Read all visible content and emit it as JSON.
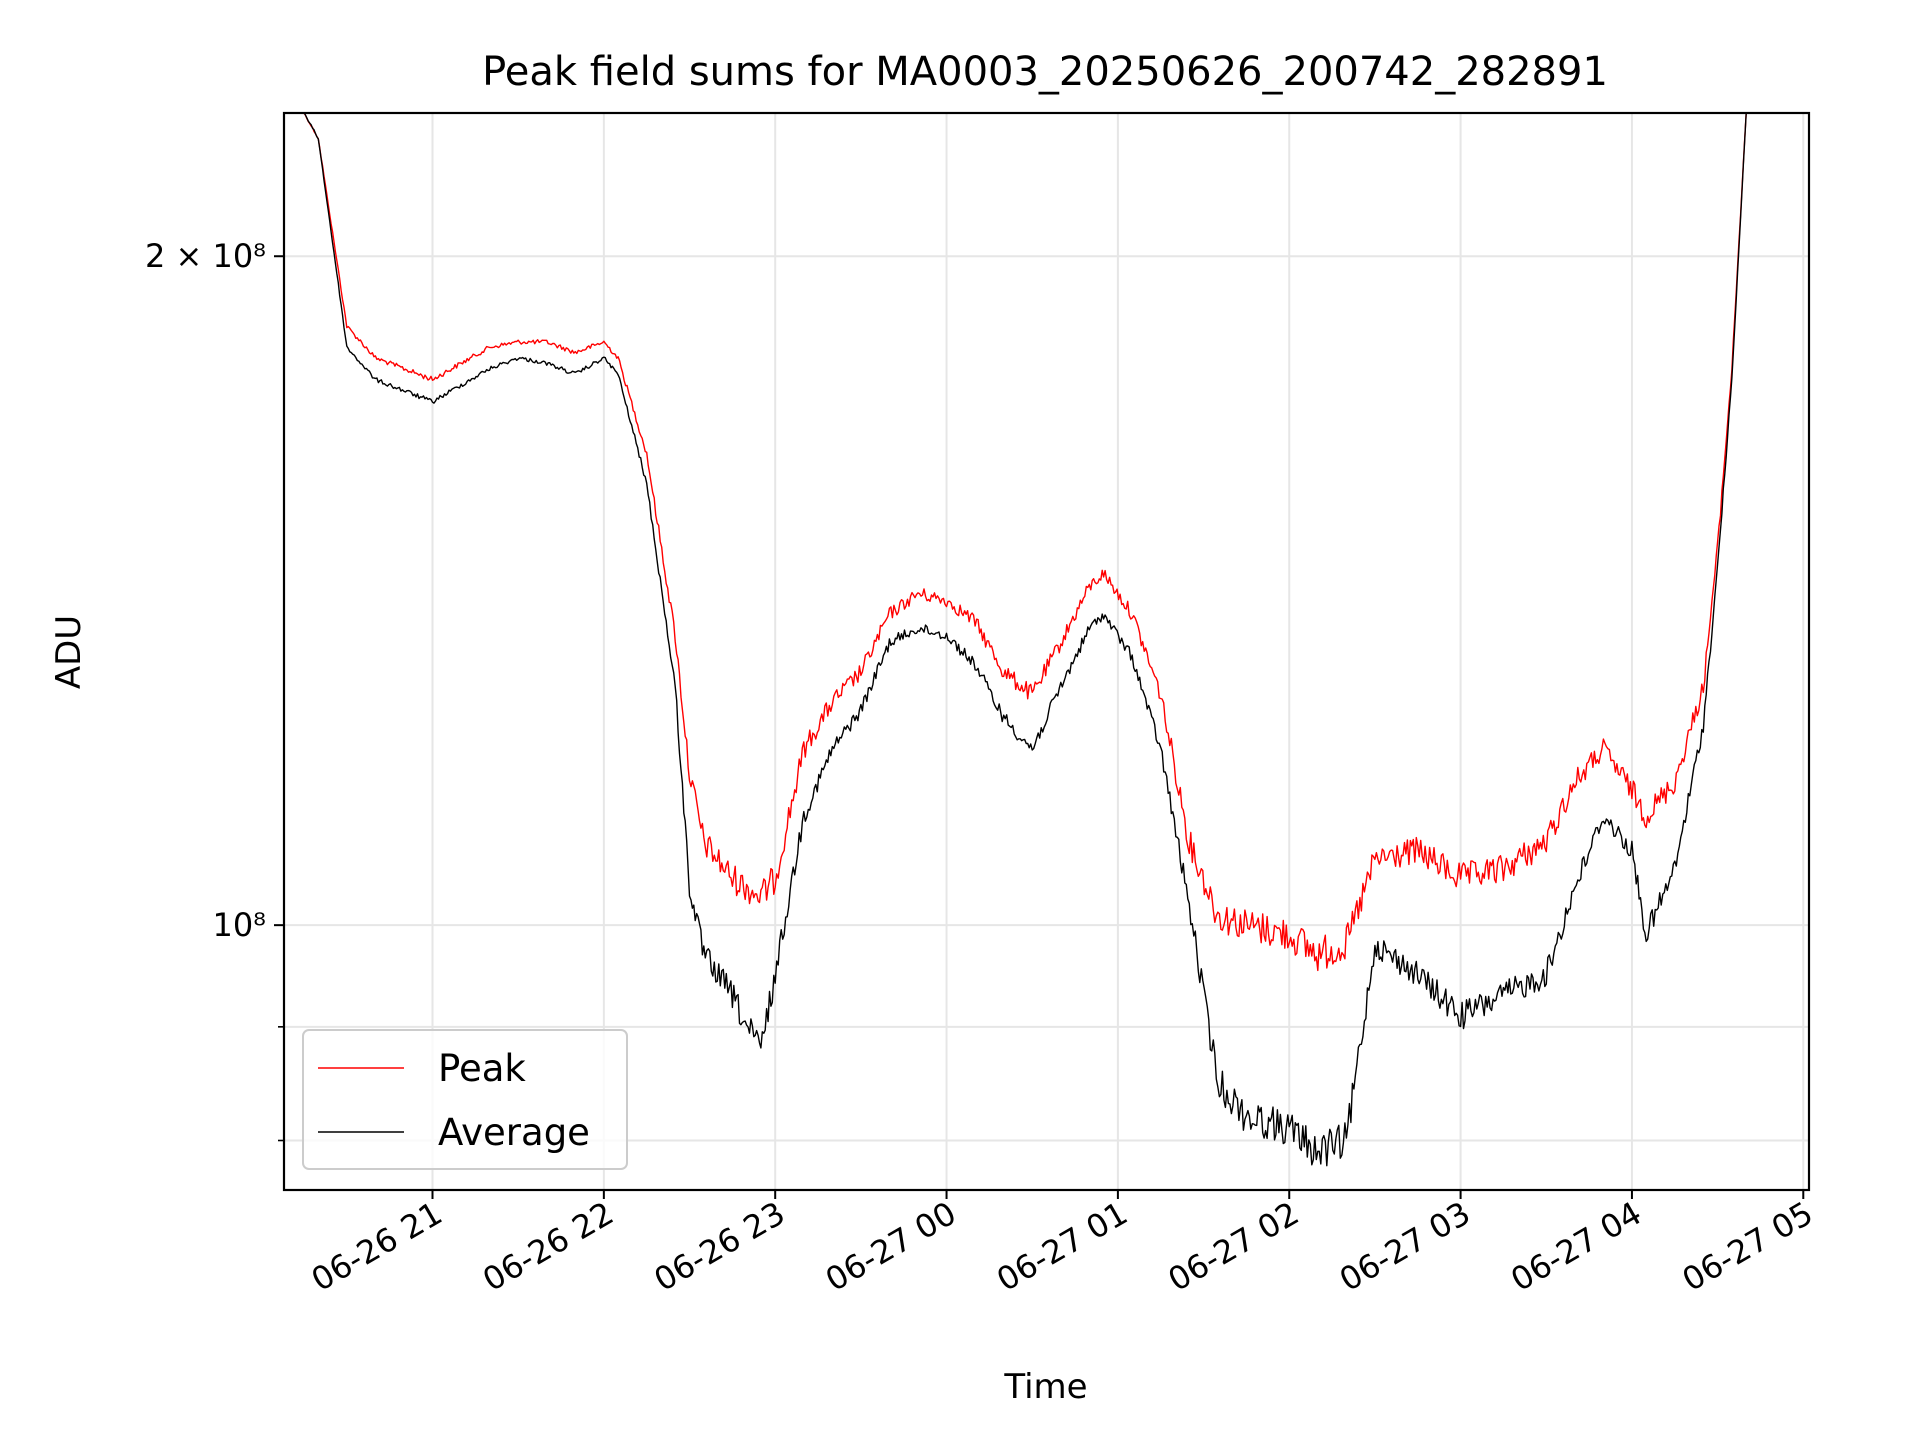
{
  "chart_data": {
    "type": "line",
    "title": "Peak field sums for MA0003_20250626_200742_282891",
    "xlabel": "Time",
    "ylabel": "ADU",
    "y_scale": "log",
    "grid": true,
    "legend_position": "lower-left",
    "x_ticks": [
      "06-26 21",
      "06-26 22",
      "06-26 23",
      "06-27 00",
      "06-27 01",
      "06-27 02",
      "06-27 03",
      "06-27 04",
      "06-27 05"
    ],
    "y_major_ticks": [
      {
        "value": 200000000,
        "label": "2 × 10⁸"
      },
      {
        "value": 100000000,
        "label": "10⁸"
      }
    ],
    "y_minor_tick_values": [
      90000000,
      80000000
    ],
    "xlim": [
      "2025-06-26 20:08",
      "2025-06-27 05:02"
    ],
    "ylim": [
      76000000,
      232000000
    ],
    "series": [
      {
        "name": "Peak",
        "color": "#ff0000",
        "x": [
          "2025-06-26 20:08",
          "2025-06-26 20:15",
          "2025-06-26 20:20",
          "2025-06-26 20:25",
          "2025-06-26 20:30",
          "2025-06-26 20:40",
          "2025-06-26 20:50",
          "2025-06-26 21:00",
          "2025-06-26 21:10",
          "2025-06-26 21:20",
          "2025-06-26 21:30",
          "2025-06-26 21:40",
          "2025-06-26 21:50",
          "2025-06-26 22:00",
          "2025-06-26 22:05",
          "2025-06-26 22:15",
          "2025-06-26 22:25",
          "2025-06-26 22:30",
          "2025-06-26 22:35",
          "2025-06-26 22:45",
          "2025-06-26 22:50",
          "2025-06-26 22:55",
          "2025-06-26 23:00",
          "2025-06-26 23:10",
          "2025-06-26 23:20",
          "2025-06-26 23:30",
          "2025-06-26 23:40",
          "2025-06-26 23:50",
          "2025-06-27 00:00",
          "2025-06-27 00:10",
          "2025-06-27 00:20",
          "2025-06-27 00:30",
          "2025-06-27 00:40",
          "2025-06-27 00:50",
          "2025-06-27 00:55",
          "2025-06-27 01:05",
          "2025-06-27 01:15",
          "2025-06-27 01:25",
          "2025-06-27 01:35",
          "2025-06-27 01:45",
          "2025-06-27 02:00",
          "2025-06-27 02:10",
          "2025-06-27 02:20",
          "2025-06-27 02:30",
          "2025-06-27 02:45",
          "2025-06-27 03:00",
          "2025-06-27 03:15",
          "2025-06-27 03:30",
          "2025-06-27 03:40",
          "2025-06-27 03:50",
          "2025-06-27 04:00",
          "2025-06-27 04:05",
          "2025-06-27 04:15",
          "2025-06-27 04:25",
          "2025-06-27 04:30",
          "2025-06-27 04:35",
          "2025-06-27 04:40",
          "2025-06-27 05:02"
        ],
        "y": [
          232000000,
          232000000,
          226000000,
          205000000,
          186000000,
          180000000,
          178000000,
          176000000,
          179000000,
          182000000,
          183000000,
          183000000,
          181000000,
          183000000,
          180000000,
          163000000,
          135000000,
          117000000,
          109000000,
          105000000,
          104000000,
          103000000,
          105000000,
          120000000,
          126000000,
          130000000,
          138000000,
          141000000,
          140000000,
          137000000,
          130000000,
          127000000,
          134000000,
          142000000,
          144000000,
          138000000,
          127000000,
          109000000,
          101000000,
          100000000,
          99000000,
          97000000,
          98000000,
          107000000,
          108000000,
          105000000,
          106000000,
          109000000,
          116000000,
          120000000,
          115000000,
          112000000,
          116000000,
          128000000,
          148000000,
          178000000,
          232000000,
          232000000
        ]
      },
      {
        "name": "Average",
        "color": "#000000",
        "x": [
          "2025-06-26 20:08",
          "2025-06-26 20:15",
          "2025-06-26 20:20",
          "2025-06-26 20:25",
          "2025-06-26 20:30",
          "2025-06-26 20:40",
          "2025-06-26 20:50",
          "2025-06-26 21:00",
          "2025-06-26 21:10",
          "2025-06-26 21:20",
          "2025-06-26 21:30",
          "2025-06-26 21:40",
          "2025-06-26 21:50",
          "2025-06-26 22:00",
          "2025-06-26 22:05",
          "2025-06-26 22:15",
          "2025-06-26 22:25",
          "2025-06-26 22:30",
          "2025-06-26 22:35",
          "2025-06-26 22:45",
          "2025-06-26 22:50",
          "2025-06-26 22:55",
          "2025-06-26 23:00",
          "2025-06-26 23:10",
          "2025-06-26 23:20",
          "2025-06-26 23:30",
          "2025-06-26 23:40",
          "2025-06-26 23:50",
          "2025-06-27 00:00",
          "2025-06-27 00:10",
          "2025-06-27 00:20",
          "2025-06-27 00:30",
          "2025-06-27 00:40",
          "2025-06-27 00:50",
          "2025-06-27 00:55",
          "2025-06-27 01:05",
          "2025-06-27 01:15",
          "2025-06-27 01:25",
          "2025-06-27 01:35",
          "2025-06-27 01:45",
          "2025-06-27 02:00",
          "2025-06-27 02:10",
          "2025-06-27 02:20",
          "2025-06-27 02:30",
          "2025-06-27 02:45",
          "2025-06-27 03:00",
          "2025-06-27 03:15",
          "2025-06-27 03:30",
          "2025-06-27 03:40",
          "2025-06-27 03:50",
          "2025-06-27 04:00",
          "2025-06-27 04:05",
          "2025-06-27 04:15",
          "2025-06-27 04:25",
          "2025-06-27 04:30",
          "2025-06-27 04:35",
          "2025-06-27 04:40",
          "2025-06-27 05:02"
        ],
        "y": [
          232000000,
          232000000,
          226000000,
          203000000,
          182000000,
          176000000,
          174000000,
          172000000,
          175000000,
          178000000,
          180000000,
          179000000,
          177000000,
          180000000,
          177000000,
          158000000,
          128000000,
          104000000,
          97000000,
          93000000,
          90000000,
          88000000,
          95000000,
          112000000,
          120000000,
          125000000,
          134000000,
          136000000,
          135000000,
          131000000,
          124000000,
          120000000,
          128000000,
          136000000,
          138000000,
          132000000,
          120000000,
          102000000,
          85000000,
          82000000,
          81000000,
          79000000,
          80000000,
          98000000,
          95000000,
          91000000,
          93000000,
          95000000,
          104000000,
          112000000,
          108000000,
          99000000,
          106000000,
          123000000,
          145000000,
          176000000,
          232000000,
          232000000
        ]
      }
    ]
  }
}
